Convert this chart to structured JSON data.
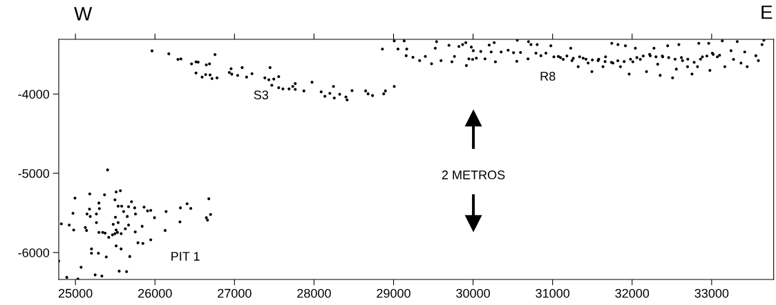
{
  "chart_data": {
    "type": "scatter",
    "color": "#000000",
    "marker": "circle",
    "grid": false,
    "legend": false,
    "xlim": [
      24790,
      33780
    ],
    "ylim": [
      -6340,
      -3310
    ],
    "xticks": [
      25000,
      26000,
      27000,
      28000,
      29000,
      30000,
      31000,
      32000,
      33000
    ],
    "yticks": [
      -4000,
      -5000,
      -6000
    ],
    "annotations": [
      "W",
      "E",
      "S3",
      "R8",
      "PIT 1",
      "2 METROS"
    ],
    "x": [
      24823,
      24891,
      25031,
      24790,
      24994,
      24969,
      24922,
      24978,
      25124,
      25140,
      25071,
      25180,
      25177,
      25146,
      25186,
      25264,
      25295,
      25301,
      25264,
      25202,
      25202,
      25289,
      25248,
      25332,
      25366,
      25295,
      25342,
      25373,
      25388,
      25404,
      25419,
      25466,
      25497,
      25512,
      25565,
      25497,
      25537,
      25581,
      25503,
      25475,
      25512,
      25537,
      25512,
      25574,
      25550,
      25643,
      25606,
      25668,
      25652,
      25668,
      25705,
      25683,
      25745,
      25755,
      25752,
      25839,
      25786,
      25848,
      25947,
      25863,
      25907,
      25947,
      25994,
      25627,
      25575,
      25528,
      26140,
      26128,
      26320,
      26314,
      26404,
      26450,
      26677,
      26646,
      26661,
      26699,
      25963,
      26174,
      26289,
      26326,
      26460,
      26516,
      26543,
      26646,
      26686,
      26755,
      26516,
      26593,
      26637,
      26693,
      26717,
      26780,
      26957,
      26966,
      26935,
      27040,
      27096,
      27152,
      27220,
      27382,
      27432,
      27447,
      27469,
      27494,
      27556,
      27556,
      27609,
      27686,
      27733,
      27764,
      27764,
      27873,
      27975,
      28090,
      28137,
      28199,
      28245,
      28255,
      28323,
      28401,
      28416,
      28478,
      28649,
      28680,
      28736,
      28876,
      28898,
      28860,
      29009,
      29009,
      29056,
      29134,
      29166,
      29159,
      29244,
      29328,
      29400,
      29478,
      29525,
      29541,
      29597,
      29697,
      29734,
      29766,
      29822,
      29869,
      29909,
      29916,
      29947,
      29978,
      30003,
      29994,
      30041,
      30097,
      30150,
      30203,
      30228,
      30281,
      30266,
      30353,
      30441,
      30509,
      30556,
      30550,
      30597,
      30697,
      30691,
      30728,
      30791,
      30806,
      30853,
      30916,
      30978,
      31016,
      31072,
      31134,
      31228,
      31244,
      31322,
      31384,
      31447,
      31494,
      31572,
      31634,
      31666,
      31744,
      31759,
      31822,
      31853,
      31916,
      31963,
      32009,
      32041,
      32103,
      32181,
      32228,
      32275,
      32322,
      32353,
      32384,
      32447,
      32509,
      32556,
      32588,
      32634,
      32697,
      32753,
      32822,
      32838,
      32884,
      32963,
      32978,
      33009,
      33072,
      33134,
      33166,
      33244,
      33275,
      33322,
      33369,
      33416,
      33447,
      33556,
      33588,
      33634,
      33656,
      31100,
      31180,
      31260,
      31340,
      31420,
      31500,
      31580,
      31660,
      31740,
      31820,
      31900,
      31980,
      32060,
      32140,
      32220,
      32300,
      32380,
      32460,
      32540,
      32620,
      32700,
      32780,
      32860,
      32940,
      33020,
      33100
    ],
    "values": [
      -5638,
      -6313,
      -6334,
      -6108,
      -5313,
      -5505,
      -5653,
      -5715,
      -5684,
      -5721,
      -6186,
      -5260,
      -5452,
      -5514,
      -5545,
      -5622,
      -5375,
      -5446,
      -5514,
      -5954,
      -6009,
      -6009,
      -6282,
      -6297,
      -5272,
      -5746,
      -5746,
      -5755,
      -6056,
      -4957,
      -5808,
      -5777,
      -5762,
      -5235,
      -5220,
      -5334,
      -5415,
      -5415,
      -5554,
      -5644,
      -5715,
      -5622,
      -5916,
      -5954,
      -6235,
      -6241,
      -5483,
      -5421,
      -5545,
      -5653,
      -5359,
      -6050,
      -5436,
      -5514,
      -5740,
      -5669,
      -5876,
      -5885,
      -5839,
      -5427,
      -5474,
      -5468,
      -5560,
      -5700,
      -5762,
      -5746,
      -5483,
      -5721,
      -5436,
      -5613,
      -5384,
      -5443,
      -5322,
      -5560,
      -5591,
      -5520,
      -3455,
      -3492,
      -3563,
      -3557,
      -3619,
      -3594,
      -3598,
      -3632,
      -3619,
      -3502,
      -3734,
      -3786,
      -3755,
      -3759,
      -3805,
      -3796,
      -3681,
      -3749,
      -3728,
      -3765,
      -3666,
      -3786,
      -3743,
      -3796,
      -3820,
      -3666,
      -3889,
      -3811,
      -3780,
      -3920,
      -3935,
      -3935,
      -3904,
      -3867,
      -3941,
      -3960,
      -3851,
      -3972,
      -4028,
      -3991,
      -3904,
      -4050,
      -4003,
      -4037,
      -4074,
      -3957,
      -3960,
      -3997,
      -4019,
      -3997,
      -3960,
      -3433,
      -3904,
      -3329,
      -3432,
      -3329,
      -3432,
      -3516,
      -3537,
      -3578,
      -3525,
      -3618,
      -3422,
      -3339,
      -3578,
      -3385,
      -3593,
      -3525,
      -3400,
      -3376,
      -3351,
      -3640,
      -3556,
      -3407,
      -3453,
      -3562,
      -3547,
      -3463,
      -3556,
      -3382,
      -3469,
      -3593,
      -3351,
      -3469,
      -3447,
      -3478,
      -3320,
      -3587,
      -3475,
      -3339,
      -3556,
      -3376,
      -3484,
      -3376,
      -3516,
      -3484,
      -3391,
      -3531,
      -3525,
      -3562,
      -3422,
      -3578,
      -3655,
      -3547,
      -3609,
      -3717,
      -3578,
      -3655,
      -3531,
      -3360,
      -3609,
      -3376,
      -3655,
      -3391,
      -3748,
      -3593,
      -3422,
      -3562,
      -3717,
      -3516,
      -3422,
      -3624,
      -3764,
      -3531,
      -3391,
      -3795,
      -3686,
      -3376,
      -3578,
      -3655,
      -3748,
      -3655,
      -3360,
      -3531,
      -3360,
      -3702,
      -3484,
      -3531,
      -3329,
      -3655,
      -3453,
      -3562,
      -3338,
      -3609,
      -3469,
      -3655,
      -3516,
      -3578,
      -3376,
      -3320,
      -3540,
      -3520,
      -3550,
      -3530,
      -3560,
      -3570,
      -3560,
      -3590,
      -3600,
      -3580,
      -3590,
      -3560,
      -3540,
      -3520,
      -3500,
      -3530,
      -3520,
      -3540,
      -3560,
      -3540,
      -3560,
      -3600,
      -3560,
      -3520,
      -3500,
      -3510
    ]
  }
}
